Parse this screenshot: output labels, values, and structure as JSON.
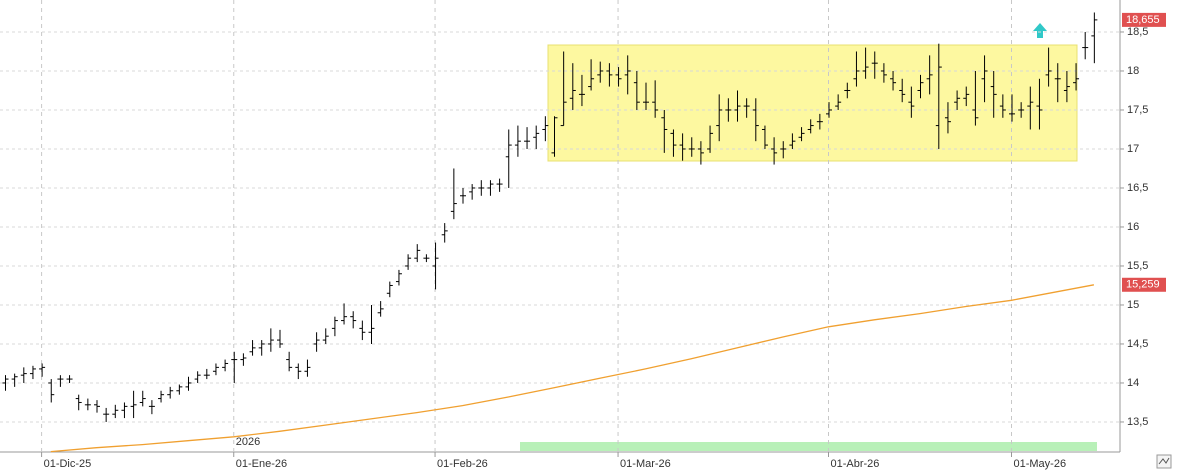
{
  "chart_data": {
    "type": "ohlc",
    "categories": [
      null,
      null,
      null,
      null,
      "01-Dic-25",
      null,
      null,
      null,
      null,
      null,
      null,
      null,
      null,
      null,
      null,
      null,
      null,
      null,
      null,
      null,
      null,
      null,
      null,
      null,
      null,
      "01-Ene-26",
      null,
      null,
      null,
      null,
      null,
      null,
      null,
      null,
      null,
      null,
      null,
      null,
      null,
      null,
      null,
      null,
      null,
      null,
      null,
      null,
      null,
      "01-Feb-26",
      null,
      null,
      null,
      null,
      null,
      null,
      null,
      null,
      null,
      null,
      null,
      null,
      null,
      null,
      null,
      null,
      null,
      null,
      null,
      "01-Mar-26",
      null,
      null,
      null,
      null,
      null,
      null,
      null,
      null,
      null,
      null,
      null,
      null,
      null,
      null,
      null,
      null,
      null,
      null,
      null,
      null,
      null,
      null,
      "01-Abr-26",
      null,
      null,
      null,
      null,
      null,
      null,
      null,
      null,
      null,
      null,
      null,
      null,
      null,
      null,
      null,
      null,
      null,
      null,
      null,
      "01-May-26",
      null,
      null,
      null,
      null,
      null,
      null,
      null,
      null,
      null
    ],
    "series": [
      {
        "color": "#000000",
        "values": [
          [
            14.0,
            14.1,
            13.9,
            14.05
          ],
          [
            14.05,
            14.12,
            13.95,
            14.08
          ],
          [
            14.1,
            14.2,
            14.0,
            14.12
          ],
          [
            14.12,
            14.22,
            14.05,
            14.18
          ],
          [
            14.18,
            14.25,
            14.08,
            14.2
          ],
          [
            14.0,
            14.05,
            13.75,
            13.85
          ],
          [
            14.05,
            14.1,
            13.95,
            14.05
          ],
          [
            14.05,
            14.1,
            14.0,
            14.05
          ],
          [
            13.8,
            13.85,
            13.65,
            13.75
          ],
          [
            13.72,
            13.8,
            13.65,
            13.72
          ],
          [
            13.72,
            13.78,
            13.62,
            13.7
          ],
          [
            13.6,
            13.68,
            13.5,
            13.6
          ],
          [
            13.6,
            13.72,
            13.55,
            13.65
          ],
          [
            13.65,
            13.75,
            13.55,
            13.7
          ],
          [
            13.7,
            13.9,
            13.55,
            13.72
          ],
          [
            13.75,
            13.9,
            13.7,
            13.8
          ],
          [
            13.7,
            13.78,
            13.6,
            13.7
          ],
          [
            13.8,
            13.9,
            13.75,
            13.85
          ],
          [
            13.85,
            13.95,
            13.8,
            13.9
          ],
          [
            13.9,
            13.98,
            13.85,
            13.95
          ],
          [
            13.95,
            14.08,
            13.9,
            14.0
          ],
          [
            14.05,
            14.15,
            14.0,
            14.1
          ],
          [
            14.1,
            14.18,
            14.05,
            14.1
          ],
          [
            14.15,
            14.25,
            14.1,
            14.2
          ],
          [
            14.2,
            14.3,
            14.15,
            14.25
          ],
          [
            14.3,
            14.4,
            14.0,
            14.3
          ],
          [
            14.3,
            14.38,
            14.22,
            14.32
          ],
          [
            14.4,
            14.55,
            14.35,
            14.45
          ],
          [
            14.45,
            14.55,
            14.35,
            14.5
          ],
          [
            14.5,
            14.7,
            14.4,
            14.55
          ],
          [
            14.55,
            14.68,
            14.45,
            14.5
          ],
          [
            14.3,
            14.4,
            14.15,
            14.2
          ],
          [
            14.2,
            14.25,
            14.05,
            14.15
          ],
          [
            14.15,
            14.3,
            14.08,
            14.2
          ],
          [
            14.5,
            14.65,
            14.4,
            14.55
          ],
          [
            14.55,
            14.7,
            14.5,
            14.6
          ],
          [
            14.7,
            14.85,
            14.6,
            14.8
          ],
          [
            14.8,
            15.02,
            14.75,
            14.85
          ],
          [
            14.85,
            14.92,
            14.7,
            14.8
          ],
          [
            14.7,
            14.8,
            14.55,
            14.65
          ],
          [
            14.65,
            15.0,
            14.5,
            14.7
          ],
          [
            14.9,
            15.05,
            14.85,
            14.95
          ],
          [
            15.15,
            15.3,
            15.1,
            15.25
          ],
          [
            15.3,
            15.45,
            15.25,
            15.4
          ],
          [
            15.5,
            15.65,
            15.45,
            15.6
          ],
          [
            15.6,
            15.78,
            15.55,
            15.7
          ],
          [
            15.6,
            15.65,
            15.55,
            15.6
          ],
          [
            15.5,
            15.8,
            15.2,
            15.6
          ],
          [
            15.9,
            16.05,
            15.8,
            15.95
          ],
          [
            16.2,
            16.75,
            16.1,
            16.3
          ],
          [
            16.4,
            16.5,
            16.3,
            16.4
          ],
          [
            16.45,
            16.55,
            16.35,
            16.5
          ],
          [
            16.5,
            16.6,
            16.4,
            16.5
          ],
          [
            16.5,
            16.6,
            16.4,
            16.55
          ],
          [
            16.55,
            16.62,
            16.45,
            16.55
          ],
          [
            16.9,
            17.25,
            16.5,
            17.05
          ],
          [
            17.05,
            17.3,
            16.9,
            17.1
          ],
          [
            17.1,
            17.28,
            17.0,
            17.1
          ],
          [
            17.15,
            17.3,
            17.0,
            17.2
          ],
          [
            17.25,
            17.42,
            17.1,
            17.3
          ],
          [
            16.95,
            17.42,
            16.9,
            17.4
          ],
          [
            17.3,
            18.25,
            17.3,
            17.6
          ],
          [
            17.65,
            18.1,
            17.5,
            17.75
          ],
          [
            17.7,
            17.95,
            17.55,
            17.7
          ],
          [
            17.8,
            18.15,
            17.75,
            17.9
          ],
          [
            17.95,
            18.12,
            17.85,
            18.0
          ],
          [
            18.0,
            18.1,
            17.8,
            17.95
          ],
          [
            17.95,
            18.05,
            17.8,
            17.9
          ],
          [
            17.95,
            18.2,
            17.7,
            18.0
          ],
          [
            17.85,
            18.0,
            17.5,
            17.6
          ],
          [
            17.6,
            17.85,
            17.5,
            17.6
          ],
          [
            17.6,
            17.88,
            17.4,
            17.5
          ],
          [
            17.4,
            17.5,
            16.95,
            17.25
          ],
          [
            17.2,
            17.25,
            16.9,
            17.05
          ],
          [
            17.05,
            17.2,
            16.85,
            17.0
          ],
          [
            17.0,
            17.15,
            16.9,
            17.0
          ],
          [
            17.0,
            17.1,
            16.8,
            16.95
          ],
          [
            17.0,
            17.3,
            16.95,
            17.2
          ],
          [
            17.3,
            17.7,
            17.1,
            17.5
          ],
          [
            17.5,
            17.65,
            17.35,
            17.5
          ],
          [
            17.5,
            17.75,
            17.35,
            17.55
          ],
          [
            17.55,
            17.65,
            17.4,
            17.55
          ],
          [
            17.5,
            17.65,
            17.1,
            17.3
          ],
          [
            17.25,
            17.3,
            17.0,
            17.05
          ],
          [
            17.0,
            17.15,
            16.8,
            16.95
          ],
          [
            17.0,
            17.1,
            16.88,
            17.0
          ],
          [
            17.05,
            17.2,
            17.0,
            17.1
          ],
          [
            17.15,
            17.28,
            17.1,
            17.2
          ],
          [
            17.25,
            17.38,
            17.2,
            17.3
          ],
          [
            17.35,
            17.45,
            17.25,
            17.35
          ],
          [
            17.45,
            17.6,
            17.4,
            17.5
          ],
          [
            17.55,
            17.7,
            17.5,
            17.6
          ],
          [
            17.75,
            17.85,
            17.65,
            17.75
          ],
          [
            17.9,
            18.25,
            17.8,
            18.0
          ],
          [
            18.0,
            18.3,
            17.9,
            18.05
          ],
          [
            18.1,
            18.25,
            17.9,
            18.1
          ],
          [
            18.0,
            18.1,
            17.85,
            17.95
          ],
          [
            17.9,
            18.0,
            17.75,
            17.85
          ],
          [
            17.75,
            17.9,
            17.6,
            17.7
          ],
          [
            17.6,
            17.8,
            17.4,
            17.55
          ],
          [
            17.75,
            17.95,
            17.65,
            17.85
          ],
          [
            17.9,
            18.2,
            17.7,
            17.95
          ],
          [
            17.3,
            18.35,
            17.0,
            18.05
          ],
          [
            17.4,
            17.6,
            17.2,
            17.35
          ],
          [
            17.6,
            17.75,
            17.5,
            17.65
          ],
          [
            17.65,
            17.8,
            17.55,
            17.7
          ],
          [
            17.5,
            18.0,
            17.3,
            17.4
          ],
          [
            17.9,
            18.2,
            17.6,
            18.0
          ],
          [
            17.8,
            18.0,
            17.4,
            17.7
          ],
          [
            17.55,
            17.7,
            17.4,
            17.5
          ],
          [
            17.45,
            17.7,
            17.35,
            17.45
          ],
          [
            17.5,
            17.6,
            17.4,
            17.5
          ],
          [
            17.55,
            17.8,
            17.25,
            17.6
          ],
          [
            17.55,
            17.9,
            17.25,
            17.5
          ],
          [
            17.95,
            18.3,
            17.8,
            18.0
          ],
          [
            17.9,
            18.1,
            17.6,
            17.9
          ],
          [
            17.75,
            18.0,
            17.6,
            17.8
          ],
          [
            17.85,
            18.1,
            17.75,
            17.9
          ],
          [
            18.3,
            18.5,
            18.15,
            18.3
          ],
          [
            18.45,
            18.75,
            18.1,
            18.655
          ]
        ]
      }
    ],
    "ma": {
      "color": "#f0a030",
      "x": [
        5,
        10,
        15,
        20,
        25,
        30,
        35,
        40,
        45,
        50,
        55,
        60,
        65,
        70,
        75,
        80,
        85,
        90,
        95,
        100,
        105,
        110,
        115,
        119
      ],
      "values": [
        13.12,
        13.17,
        13.21,
        13.26,
        13.31,
        13.38,
        13.46,
        13.54,
        13.62,
        13.71,
        13.82,
        13.94,
        14.06,
        14.18,
        14.31,
        14.45,
        14.59,
        14.72,
        14.81,
        14.89,
        14.98,
        15.06,
        15.17,
        15.259
      ]
    },
    "price_tags": [
      {
        "value": 18.655,
        "label": "18,655"
      },
      {
        "value": 15.259,
        "label": "15,259"
      }
    ],
    "year_label": "2026",
    "ylim": [
      13.115,
      18.91
    ],
    "yticks": [
      {
        "value": 13.5,
        "label": "13,5"
      },
      14,
      {
        "value": 14.5,
        "label": "14,5"
      },
      15,
      {
        "value": 15.5,
        "label": "15,5"
      },
      16,
      {
        "value": 16.5,
        "label": "16,5"
      },
      17,
      {
        "value": 17.5,
        "label": "17,5"
      },
      18,
      {
        "value": 18.5,
        "label": "18,5"
      }
    ],
    "grid": true
  }
}
